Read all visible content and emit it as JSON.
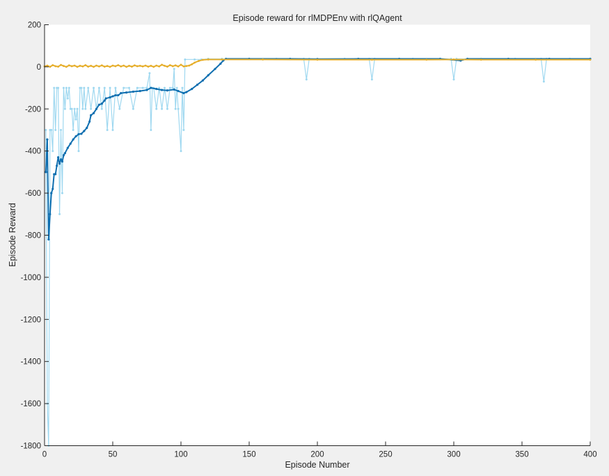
{
  "chart_data": {
    "type": "line",
    "title": "Episode reward for rlMDPEnv with rlQAgent",
    "xlabel": "Episode Number",
    "ylabel": "Episode Reward",
    "xlim": [
      0,
      400
    ],
    "ylim": [
      -1800,
      200
    ],
    "x_ticks": [
      0,
      50,
      100,
      150,
      200,
      250,
      300,
      350,
      400
    ],
    "y_ticks": [
      -1800,
      -1600,
      -1400,
      -1200,
      -1000,
      -800,
      -600,
      -400,
      -200,
      0,
      200
    ],
    "grid": false,
    "colors": {
      "episode_reward": "#9fd8f0",
      "average_reward": "#0f6fb0",
      "episode_q0": "#e6ae2a",
      "background": "#f0f0f0",
      "axes_background": "#ffffff"
    },
    "series": [
      {
        "key": "episode_reward",
        "points": [
          [
            1,
            -300
          ],
          [
            2,
            -1600
          ],
          [
            3,
            -1800
          ],
          [
            4,
            -300
          ],
          [
            5,
            -300
          ],
          [
            6,
            -400
          ],
          [
            7,
            -100
          ],
          [
            8,
            -300
          ],
          [
            9,
            -100
          ],
          [
            10,
            -100
          ],
          [
            11,
            -700
          ],
          [
            12,
            -300
          ],
          [
            13,
            -600
          ],
          [
            14,
            -100
          ],
          [
            15,
            -200
          ],
          [
            16,
            -100
          ],
          [
            17,
            -150
          ],
          [
            18,
            -100
          ],
          [
            19,
            -200
          ],
          [
            20,
            -200
          ],
          [
            21,
            -300
          ],
          [
            22,
            -200
          ],
          [
            23,
            -250
          ],
          [
            24,
            -200
          ],
          [
            25,
            -400
          ],
          [
            26,
            -100
          ],
          [
            27,
            -100
          ],
          [
            28,
            -200
          ],
          [
            29,
            -100
          ],
          [
            30,
            -200
          ],
          [
            32,
            -100
          ],
          [
            34,
            -200
          ],
          [
            36,
            -100
          ],
          [
            38,
            -200
          ],
          [
            40,
            -100
          ],
          [
            42,
            -200
          ],
          [
            44,
            -100
          ],
          [
            46,
            -300
          ],
          [
            48,
            -100
          ],
          [
            50,
            -300
          ],
          [
            52,
            -100
          ],
          [
            55,
            -200
          ],
          [
            58,
            -100
          ],
          [
            62,
            -100
          ],
          [
            65,
            -200
          ],
          [
            68,
            -100
          ],
          [
            72,
            -100
          ],
          [
            75,
            -100
          ],
          [
            77,
            -30
          ],
          [
            78,
            -300
          ],
          [
            79,
            -100
          ],
          [
            80,
            -100
          ],
          [
            82,
            -200
          ],
          [
            84,
            -100
          ],
          [
            86,
            -200
          ],
          [
            88,
            -100
          ],
          [
            90,
            -200
          ],
          [
            92,
            -100
          ],
          [
            94,
            -100
          ],
          [
            95,
            -10
          ],
          [
            96,
            -200
          ],
          [
            97,
            -100
          ],
          [
            98,
            -200
          ],
          [
            100,
            -400
          ],
          [
            101,
            -100
          ],
          [
            102,
            -300
          ],
          [
            103,
            35
          ],
          [
            110,
            35
          ],
          [
            115,
            35
          ],
          [
            120,
            38
          ],
          [
            130,
            38
          ],
          [
            150,
            38
          ],
          [
            170,
            38
          ],
          [
            190,
            38
          ],
          [
            192,
            -60
          ],
          [
            194,
            38
          ],
          [
            220,
            38
          ],
          [
            238,
            38
          ],
          [
            240,
            -60
          ],
          [
            242,
            38
          ],
          [
            270,
            38
          ],
          [
            298,
            38
          ],
          [
            300,
            -60
          ],
          [
            302,
            38
          ],
          [
            320,
            38
          ],
          [
            345,
            38
          ],
          [
            364,
            38
          ],
          [
            366,
            -70
          ],
          [
            368,
            38
          ],
          [
            385,
            38
          ],
          [
            400,
            38
          ]
        ]
      },
      {
        "key": "average_reward",
        "points": [
          [
            1,
            -500
          ],
          [
            2,
            -345
          ],
          [
            3,
            -820
          ],
          [
            4,
            -700
          ],
          [
            5,
            -600
          ],
          [
            6,
            -580
          ],
          [
            7,
            -510
          ],
          [
            8,
            -510
          ],
          [
            9,
            -470
          ],
          [
            10,
            -430
          ],
          [
            11,
            -460
          ],
          [
            12,
            -440
          ],
          [
            13,
            -450
          ],
          [
            14,
            -420
          ],
          [
            15,
            -410
          ],
          [
            17,
            -385
          ],
          [
            19,
            -365
          ],
          [
            21,
            -345
          ],
          [
            23,
            -330
          ],
          [
            25,
            -320
          ],
          [
            27,
            -318
          ],
          [
            29,
            -305
          ],
          [
            31,
            -290
          ],
          [
            33,
            -260
          ],
          [
            34,
            -230
          ],
          [
            36,
            -220
          ],
          [
            38,
            -200
          ],
          [
            40,
            -180
          ],
          [
            42,
            -175
          ],
          [
            44,
            -160
          ],
          [
            45,
            -150
          ],
          [
            48,
            -145
          ],
          [
            50,
            -140
          ],
          [
            52,
            -135
          ],
          [
            54,
            -135
          ],
          [
            56,
            -125
          ],
          [
            60,
            -122
          ],
          [
            65,
            -118
          ],
          [
            70,
            -115
          ],
          [
            75,
            -110
          ],
          [
            78,
            -100
          ],
          [
            82,
            -105
          ],
          [
            86,
            -110
          ],
          [
            90,
            -112
          ],
          [
            95,
            -108
          ],
          [
            98,
            -115
          ],
          [
            102,
            -125
          ],
          [
            104,
            -120
          ],
          [
            108,
            -105
          ],
          [
            112,
            -85
          ],
          [
            116,
            -65
          ],
          [
            120,
            -40
          ],
          [
            125,
            -10
          ],
          [
            129,
            15
          ],
          [
            131,
            30
          ],
          [
            133,
            38
          ],
          [
            150,
            38
          ],
          [
            180,
            38
          ],
          [
            200,
            37
          ],
          [
            230,
            38
          ],
          [
            260,
            38
          ],
          [
            290,
            38
          ],
          [
            305,
            30
          ],
          [
            310,
            38
          ],
          [
            340,
            38
          ],
          [
            370,
            38
          ],
          [
            400,
            38
          ]
        ]
      },
      {
        "key": "episode_q0",
        "points": [
          [
            0,
            2
          ],
          [
            2,
            6
          ],
          [
            4,
            0
          ],
          [
            6,
            8
          ],
          [
            8,
            3
          ],
          [
            10,
            1
          ],
          [
            12,
            9
          ],
          [
            14,
            4
          ],
          [
            16,
            0
          ],
          [
            18,
            7
          ],
          [
            20,
            3
          ],
          [
            22,
            6
          ],
          [
            24,
            0
          ],
          [
            26,
            5
          ],
          [
            28,
            2
          ],
          [
            30,
            8
          ],
          [
            32,
            1
          ],
          [
            34,
            5
          ],
          [
            36,
            0
          ],
          [
            38,
            6
          ],
          [
            40,
            2
          ],
          [
            42,
            7
          ],
          [
            44,
            1
          ],
          [
            46,
            4
          ],
          [
            48,
            0
          ],
          [
            50,
            6
          ],
          [
            52,
            3
          ],
          [
            54,
            8
          ],
          [
            56,
            2
          ],
          [
            58,
            6
          ],
          [
            60,
            0
          ],
          [
            62,
            5
          ],
          [
            64,
            1
          ],
          [
            66,
            7
          ],
          [
            68,
            3
          ],
          [
            70,
            5
          ],
          [
            72,
            2
          ],
          [
            74,
            6
          ],
          [
            76,
            1
          ],
          [
            78,
            5
          ],
          [
            80,
            0
          ],
          [
            82,
            6
          ],
          [
            84,
            2
          ],
          [
            86,
            10
          ],
          [
            88,
            5
          ],
          [
            90,
            1
          ],
          [
            92,
            8
          ],
          [
            94,
            3
          ],
          [
            96,
            7
          ],
          [
            98,
            2
          ],
          [
            100,
            10
          ],
          [
            102,
            2
          ],
          [
            104,
            4
          ],
          [
            106,
            6
          ],
          [
            108,
            12
          ],
          [
            110,
            20
          ],
          [
            113,
            28
          ],
          [
            116,
            33
          ],
          [
            120,
            35
          ],
          [
            130,
            35
          ],
          [
            160,
            35
          ],
          [
            200,
            34
          ],
          [
            240,
            34
          ],
          [
            280,
            34
          ],
          [
            300,
            35
          ],
          [
            320,
            34
          ],
          [
            360,
            34
          ],
          [
            400,
            34
          ]
        ]
      }
    ]
  }
}
